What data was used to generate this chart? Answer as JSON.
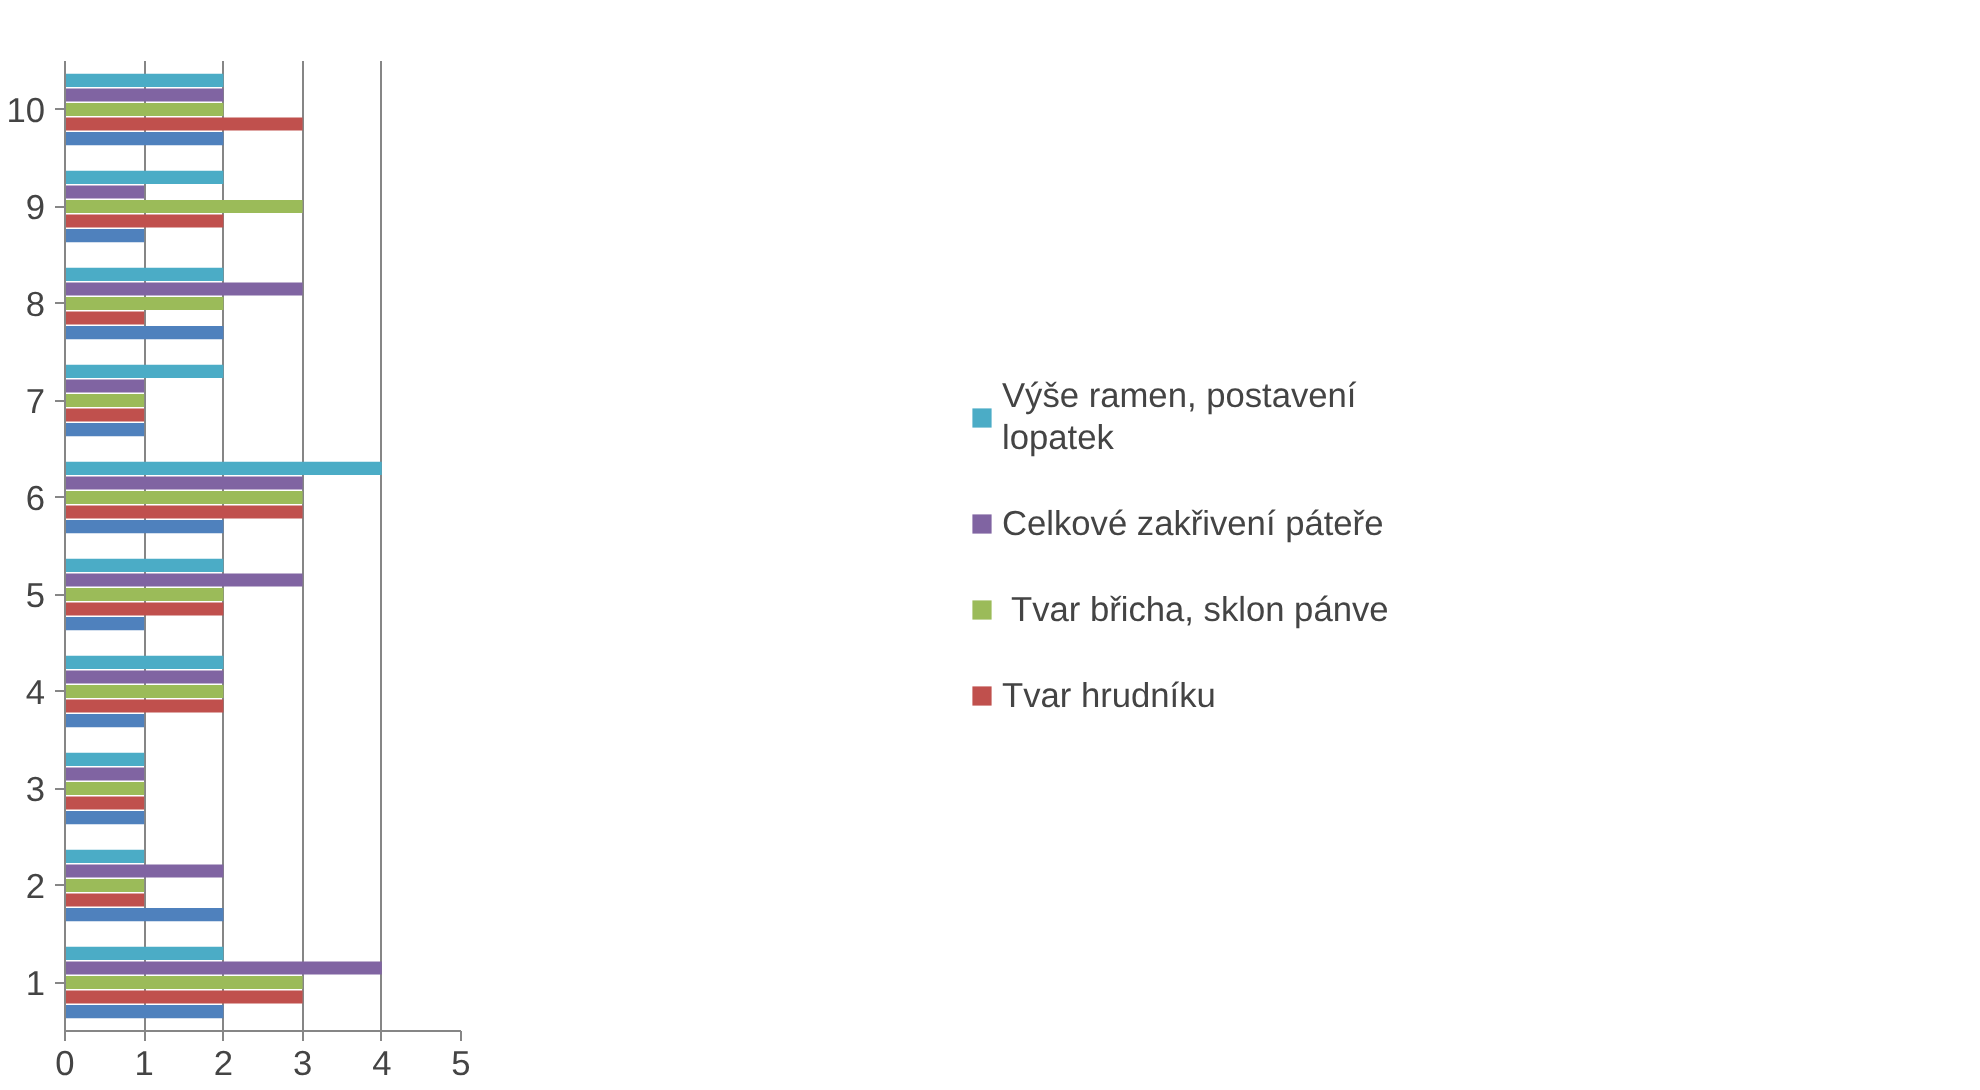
{
  "chart_data": {
    "type": "bar",
    "orientation": "horizontal",
    "categories": [
      "10",
      "9",
      "8",
      "7",
      "6",
      "5",
      "4",
      "3",
      "2",
      "1"
    ],
    "series": [
      {
        "color": "#4f81bd",
        "values": [
          2,
          1,
          2,
          1,
          2,
          1,
          1,
          1,
          2,
          2
        ]
      },
      {
        "name": "Tvar hrudníku",
        "color": "#c0504d",
        "values": [
          3,
          2,
          1,
          1,
          3,
          2,
          2,
          1,
          1,
          3
        ]
      },
      {
        "name": " Tvar břicha, sklon pánve",
        "color": "#9bbb59",
        "values": [
          2,
          3,
          2,
          1,
          3,
          2,
          2,
          1,
          1,
          3
        ]
      },
      {
        "name": "Celkové zakřivení páteře",
        "color": "#8064a2",
        "values": [
          2,
          1,
          3,
          1,
          3,
          3,
          2,
          1,
          2,
          4
        ]
      },
      {
        "name": "Výše ramen, postavení lopatek",
        "color": "#4bacc6",
        "values": [
          2,
          2,
          2,
          2,
          4,
          2,
          2,
          1,
          1,
          2
        ]
      }
    ],
    "xlim": [
      0,
      5
    ],
    "xticks": [
      0,
      1,
      2,
      3,
      4,
      5
    ],
    "grid": "x",
    "legend": "right"
  }
}
